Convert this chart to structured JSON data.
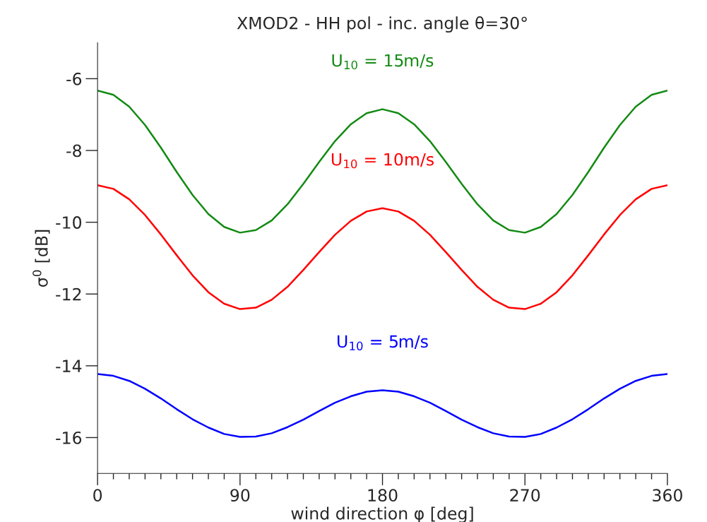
{
  "chart_data": {
    "type": "line",
    "title": "XMOD2 - HH pol - inc. angle θ=30°",
    "xlabel": "wind direction φ [deg]",
    "ylabel": "σ$^{0}$ [dB]",
    "x": [
      0,
      10,
      20,
      30,
      40,
      50,
      60,
      70,
      80,
      90,
      100,
      110,
      120,
      130,
      140,
      150,
      160,
      170,
      180,
      190,
      200,
      210,
      220,
      230,
      240,
      250,
      260,
      270,
      280,
      290,
      300,
      310,
      320,
      330,
      340,
      350,
      360
    ],
    "series": [
      {
        "name": "U$_{10}$ = 15m/s",
        "color": "#138a13",
        "values": [
          -6.33,
          -6.45,
          -6.78,
          -7.29,
          -7.92,
          -8.6,
          -9.24,
          -9.77,
          -10.13,
          -10.29,
          -10.22,
          -9.95,
          -9.5,
          -8.93,
          -8.32,
          -7.74,
          -7.27,
          -6.96,
          -6.85,
          -6.96,
          -7.27,
          -7.74,
          -8.32,
          -8.93,
          -9.5,
          -9.95,
          -10.22,
          -10.29,
          -10.13,
          -9.77,
          -9.24,
          -8.6,
          -7.92,
          -7.29,
          -6.78,
          -6.45,
          -6.33
        ]
      },
      {
        "name": "U$_{10}$ = 10m/s",
        "color": "#ff0000",
        "values": [
          -8.97,
          -9.07,
          -9.36,
          -9.8,
          -10.34,
          -10.92,
          -11.48,
          -11.95,
          -12.27,
          -12.42,
          -12.38,
          -12.16,
          -11.8,
          -11.33,
          -10.83,
          -10.35,
          -9.96,
          -9.7,
          -9.61,
          -9.7,
          -9.96,
          -10.35,
          -10.83,
          -11.33,
          -11.8,
          -12.16,
          -12.38,
          -12.42,
          -12.27,
          -11.95,
          -11.48,
          -10.92,
          -10.34,
          -9.8,
          -9.36,
          -9.07,
          -8.97
        ]
      },
      {
        "name": "U$_{10}$ = 5m/s",
        "color": "#0000ff",
        "values": [
          -14.23,
          -14.28,
          -14.42,
          -14.64,
          -14.91,
          -15.21,
          -15.49,
          -15.72,
          -15.9,
          -15.98,
          -15.97,
          -15.88,
          -15.71,
          -15.5,
          -15.26,
          -15.03,
          -14.85,
          -14.72,
          -14.68,
          -14.72,
          -14.85,
          -15.03,
          -15.26,
          -15.5,
          -15.71,
          -15.88,
          -15.97,
          -15.98,
          -15.9,
          -15.72,
          -15.49,
          -15.21,
          -14.91,
          -14.64,
          -14.42,
          -14.28,
          -14.23
        ]
      }
    ],
    "xlim": [
      0,
      360
    ],
    "xticks": [
      0,
      90,
      180,
      270,
      360
    ],
    "ylim": [
      -17,
      -5
    ],
    "yticks": [
      -16,
      -14,
      -12,
      -10,
      -8,
      -6
    ],
    "grid": false,
    "legend": false,
    "marker": "none",
    "line_style": "solid"
  }
}
